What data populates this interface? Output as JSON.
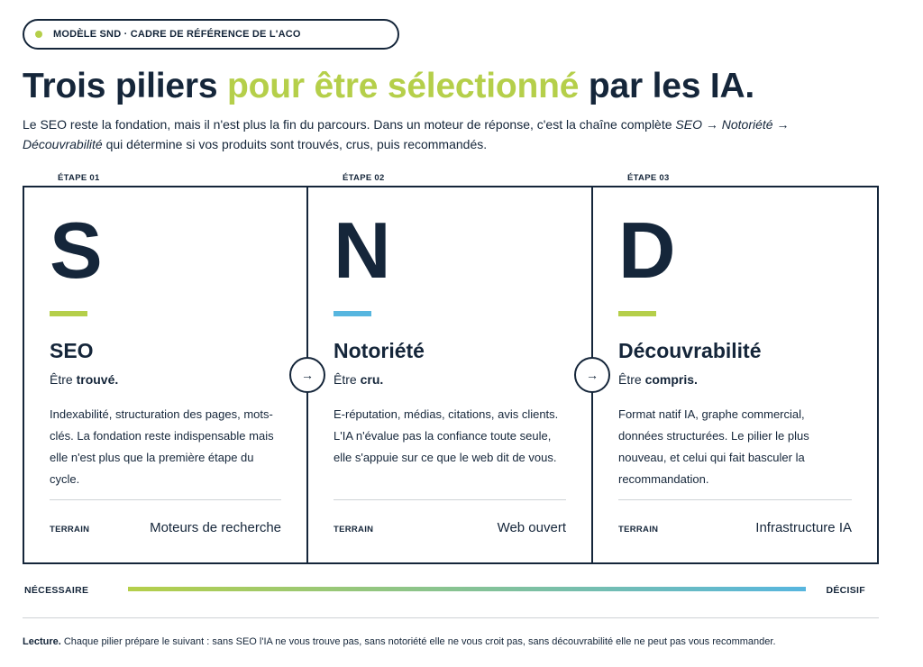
{
  "badge": {
    "text": "MODÈLE SND · CADRE DE RÉFÉRENCE DE L'ACO"
  },
  "title": {
    "part1": "Trois piliers ",
    "accent": "pour être sélectionné",
    "part2": " par les IA."
  },
  "intro": {
    "text1": "Le SEO reste la fondation, mais il n'est plus la fin du parcours. Dans un moteur de réponse, c'est la chaîne complète ",
    "chain": "SEO → Notoriété → Découvrabilité",
    "text2": " qui détermine si vos produits sont trouvés, crus, puis recommandés."
  },
  "pillars": [
    {
      "step": "ÉTAPE 01",
      "letter": "S",
      "bar_color": "#b5cf4a",
      "name": "SEO",
      "tag_prefix": "Être ",
      "tag_bold": "trouvé.",
      "description": "Indexabilité, structuration des pages, mots-clés. La fondation reste indispensable mais elle n'est plus que la première étape du cycle.",
      "terrain_label": "TERRAIN",
      "terrain_value": "Moteurs de recherche"
    },
    {
      "step": "ÉTAPE 02",
      "letter": "N",
      "bar_color": "#57b6df",
      "name": "Notoriété",
      "tag_prefix": "Être ",
      "tag_bold": "cru.",
      "description": "E-réputation, médias, citations, avis clients. L'IA n'évalue pas la confiance toute seule, elle s'appuie sur ce que le web dit de vous.",
      "terrain_label": "TERRAIN",
      "terrain_value": "Web ouvert"
    },
    {
      "step": "ÉTAPE 03",
      "letter": "D",
      "bar_color": "#b5cf4a",
      "name": "Découvrabilité",
      "tag_prefix": "Être ",
      "tag_bold": "compris.",
      "description": "Format natif IA, graphe commercial, données structurées. Le pilier le plus nouveau, et celui qui fait basculer la recommandation.",
      "terrain_label": "TERRAIN",
      "terrain_value": "Infrastructure IA"
    }
  ],
  "arrow_glyph": "→",
  "scale": {
    "left": "NÉCESSAIRE",
    "right": "DÉCISIF"
  },
  "note": {
    "bold": "Lecture.",
    "text": " Chaque pilier prépare le suivant : sans SEO l'IA ne vous trouve pas, sans notoriété elle ne vous croit pas, sans découvrabilité elle ne peut pas vous recommander."
  }
}
